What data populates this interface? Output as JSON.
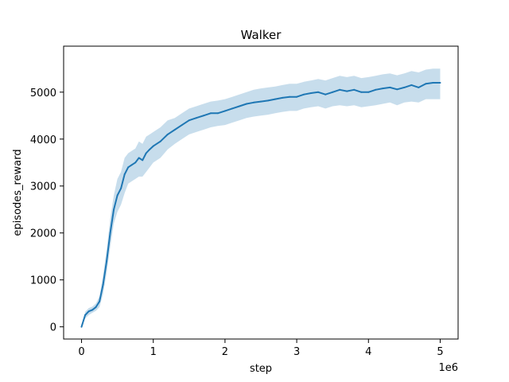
{
  "chart_data": {
    "type": "line",
    "title": "Walker",
    "xlabel": "step",
    "ylabel": "episodes_reward",
    "x_offset_label": "1e6",
    "xlim": [
      -0.25,
      5.25
    ],
    "ylim": [
      -260,
      5980
    ],
    "xticks": [
      0,
      1,
      2,
      3,
      4,
      5
    ],
    "xtick_labels": [
      "0",
      "1",
      "2",
      "3",
      "4",
      "5"
    ],
    "yticks": [
      0,
      1000,
      2000,
      3000,
      4000,
      5000
    ],
    "ytick_labels": [
      "0",
      "1000",
      "2000",
      "3000",
      "4000",
      "5000"
    ],
    "grid": false,
    "colors": {
      "line": "#1f77b4",
      "band": "#1f77b4"
    },
    "series": [
      {
        "x": [
          0,
          0.05,
          0.1,
          0.15,
          0.2,
          0.25,
          0.3,
          0.35,
          0.4,
          0.45,
          0.5,
          0.55,
          0.6,
          0.65,
          0.7,
          0.75,
          0.8,
          0.85,
          0.9,
          0.95,
          1.0,
          1.1,
          1.2,
          1.3,
          1.4,
          1.5,
          1.6,
          1.7,
          1.8,
          1.9,
          2.0,
          2.1,
          2.2,
          2.3,
          2.4,
          2.5,
          2.6,
          2.7,
          2.8,
          2.9,
          3.0,
          3.1,
          3.2,
          3.3,
          3.4,
          3.5,
          3.6,
          3.7,
          3.8,
          3.9,
          4.0,
          4.1,
          4.2,
          4.3,
          4.4,
          4.5,
          4.6,
          4.7,
          4.8,
          4.9,
          5.0
        ],
        "y": [
          0,
          250,
          330,
          360,
          420,
          540,
          900,
          1400,
          2000,
          2500,
          2800,
          2950,
          3250,
          3400,
          3450,
          3500,
          3600,
          3550,
          3700,
          3780,
          3850,
          3950,
          4100,
          4200,
          4300,
          4400,
          4450,
          4500,
          4550,
          4550,
          4600,
          4650,
          4700,
          4750,
          4780,
          4800,
          4820,
          4850,
          4880,
          4900,
          4900,
          4950,
          4980,
          5000,
          4950,
          5000,
          5050,
          5020,
          5050,
          5000,
          5000,
          5050,
          5080,
          5100,
          5060,
          5100,
          5150,
          5100,
          5180,
          5200,
          5200
        ],
        "lower": [
          0,
          180,
          250,
          300,
          340,
          420,
          700,
          1150,
          1700,
          2200,
          2450,
          2600,
          2850,
          3050,
          3100,
          3150,
          3200,
          3200,
          3300,
          3400,
          3500,
          3600,
          3780,
          3900,
          4000,
          4100,
          4150,
          4200,
          4250,
          4280,
          4300,
          4350,
          4400,
          4450,
          4480,
          4500,
          4520,
          4550,
          4580,
          4600,
          4600,
          4650,
          4680,
          4700,
          4650,
          4700,
          4720,
          4700,
          4720,
          4680,
          4700,
          4720,
          4750,
          4780,
          4720,
          4780,
          4800,
          4780,
          4850,
          4850,
          4850
        ],
        "upper": [
          0,
          320,
          400,
          430,
          500,
          650,
          1100,
          1650,
          2300,
          2800,
          3150,
          3300,
          3600,
          3700,
          3750,
          3800,
          3950,
          3900,
          4050,
          4100,
          4150,
          4250,
          4400,
          4450,
          4550,
          4650,
          4700,
          4750,
          4800,
          4820,
          4850,
          4900,
          4950,
          5000,
          5050,
          5080,
          5100,
          5120,
          5150,
          5180,
          5180,
          5220,
          5250,
          5280,
          5250,
          5300,
          5350,
          5320,
          5350,
          5300,
          5320,
          5350,
          5380,
          5400,
          5360,
          5400,
          5450,
          5420,
          5480,
          5500,
          5500
        ]
      }
    ]
  }
}
